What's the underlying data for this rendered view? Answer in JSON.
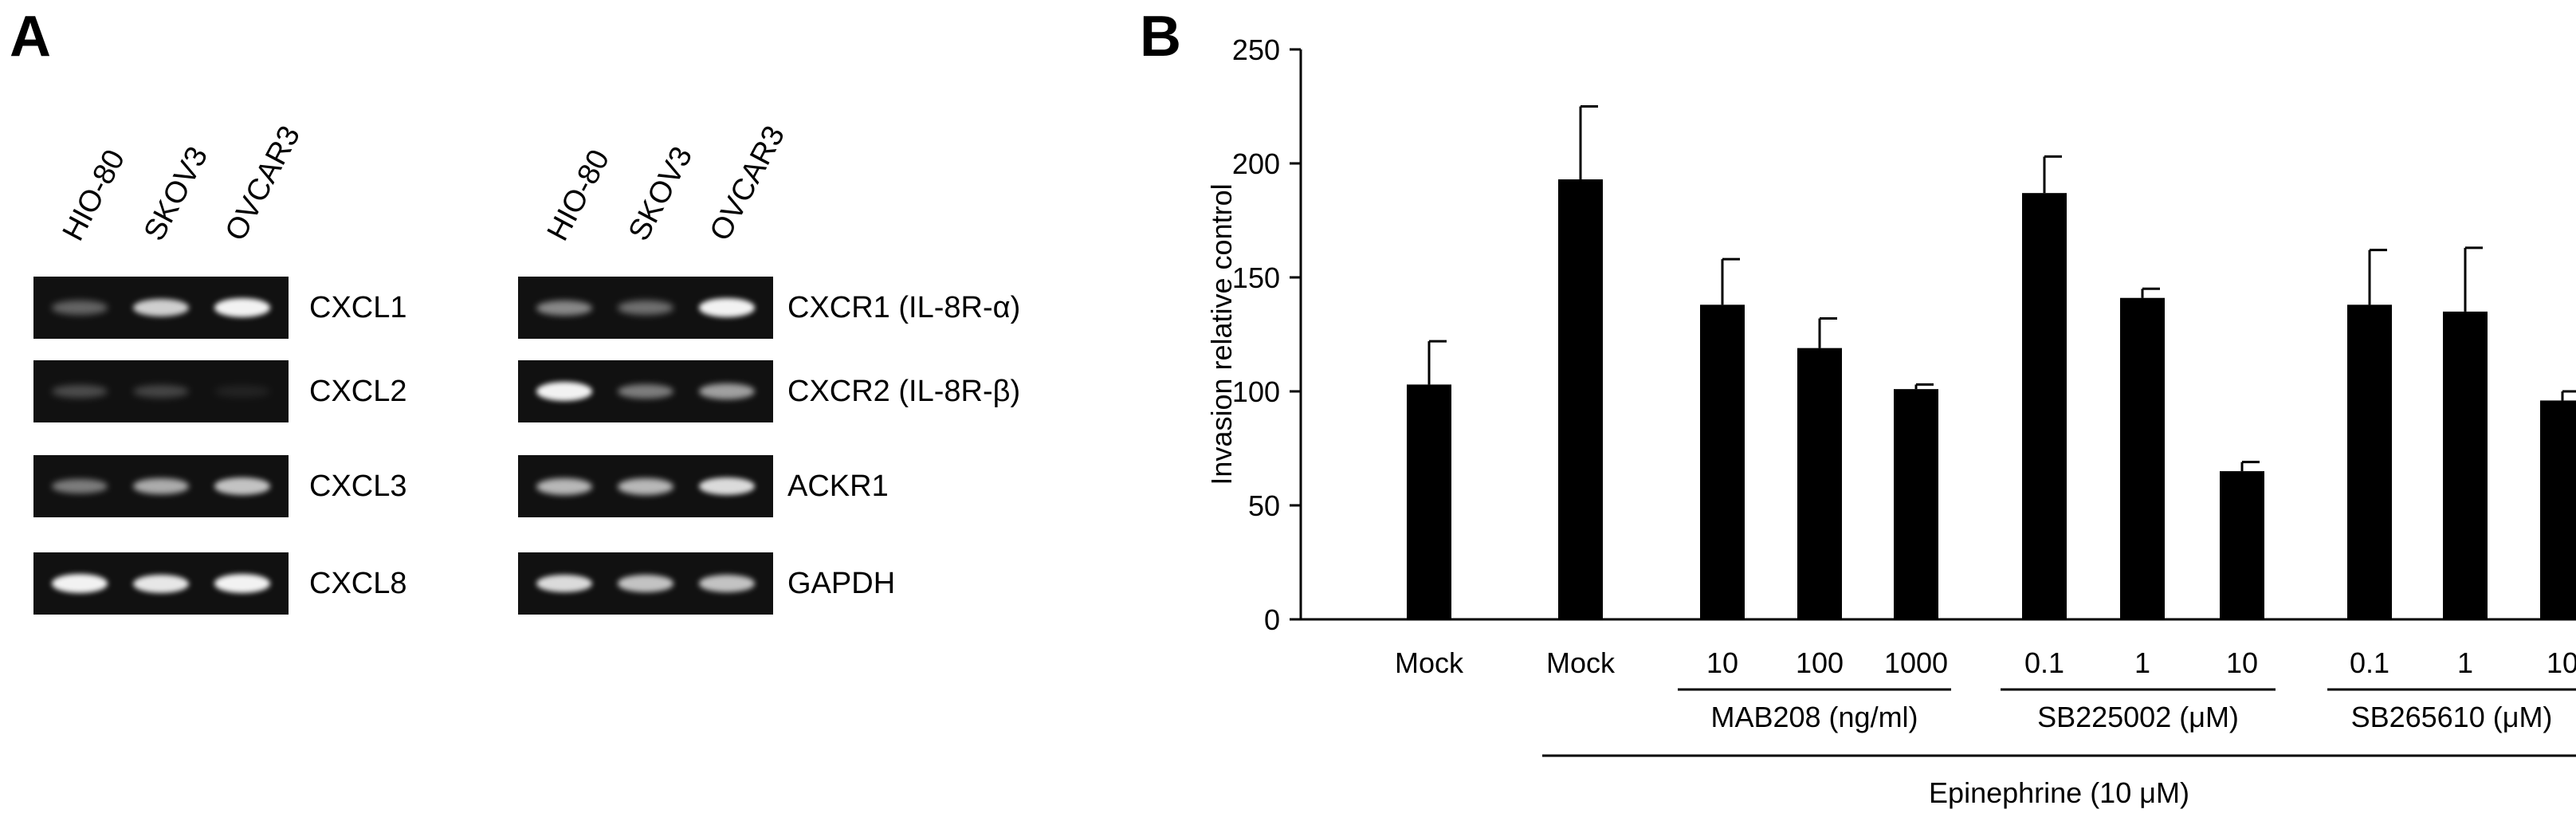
{
  "panel_a": {
    "letter": "A",
    "left_gel": {
      "lanes": [
        "HIO-80",
        "SKOV3",
        "OVCAR3"
      ],
      "rows": [
        {
          "label": "CXCL1",
          "intensity": [
            0.35,
            0.8,
            0.95
          ]
        },
        {
          "label": "CXCL2",
          "intensity": [
            0.25,
            0.22,
            0.05
          ]
        },
        {
          "label": "CXCL3",
          "intensity": [
            0.45,
            0.65,
            0.75
          ]
        },
        {
          "label": "CXCL8",
          "intensity": [
            0.95,
            0.9,
            0.95
          ]
        }
      ]
    },
    "right_gel": {
      "lanes": [
        "HIO-80",
        "SKOV3",
        "OVCAR3"
      ],
      "rows": [
        {
          "label": "CXCR1 (IL-8R-α)",
          "intensity": [
            0.5,
            0.4,
            0.95
          ]
        },
        {
          "label": "CXCR2 (IL-8R-β)",
          "intensity": [
            0.95,
            0.45,
            0.6
          ]
        },
        {
          "label": "ACKR1",
          "intensity": [
            0.7,
            0.7,
            0.85
          ]
        },
        {
          "label": "GAPDH",
          "intensity": [
            0.85,
            0.75,
            0.75
          ]
        }
      ]
    }
  },
  "panel_b": {
    "letter": "B",
    "colors": {
      "bar": "#000000",
      "axis": "#000000"
    }
  },
  "chart_data": {
    "type": "bar",
    "title": "",
    "xlabel": "",
    "ylabel": "Invasion relative control",
    "ylim": [
      0,
      250
    ],
    "yticks": [
      0,
      50,
      100,
      150,
      200,
      250
    ],
    "grid": false,
    "categories": [
      "Mock",
      "Mock",
      "10",
      "100",
      "1000",
      "0.1",
      "1",
      "10",
      "0.1",
      "1",
      "10"
    ],
    "values": [
      103,
      193,
      138,
      119,
      101,
      187,
      141,
      65,
      138,
      135,
      96
    ],
    "errors": [
      19,
      32,
      20,
      13,
      2,
      16,
      4,
      4,
      24,
      28,
      4
    ],
    "groups": [
      {
        "label": "MAB208 (ng/ml)",
        "bars": [
          2,
          3,
          4
        ]
      },
      {
        "label": "SB225002 (μM)",
        "bars": [
          5,
          6,
          7
        ]
      },
      {
        "label": "SB265610 (μM)",
        "bars": [
          8,
          9,
          10
        ]
      },
      {
        "label": "Epinephrine (10 μM)",
        "bars": [
          1,
          2,
          3,
          4,
          5,
          6,
          7,
          8,
          9,
          10
        ]
      }
    ]
  }
}
